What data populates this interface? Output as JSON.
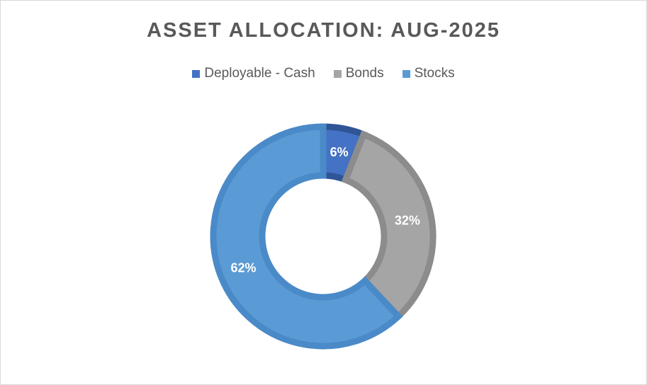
{
  "chart_data": {
    "type": "pie",
    "variant": "doughnut",
    "title": "ASSET ALLOCATION: AUG-2025",
    "legend_position": "top",
    "categories": [
      "Deployable - Cash",
      "Bonds",
      "Stocks"
    ],
    "values": [
      6,
      32,
      62
    ],
    "data_labels": [
      "6%",
      "32%",
      "62%"
    ],
    "colors": [
      "#4472c4",
      "#a5a5a5",
      "#5b9bd5"
    ],
    "edge_colors": [
      "#2f5597",
      "#8c8c8c",
      "#4a8ac8"
    ]
  }
}
